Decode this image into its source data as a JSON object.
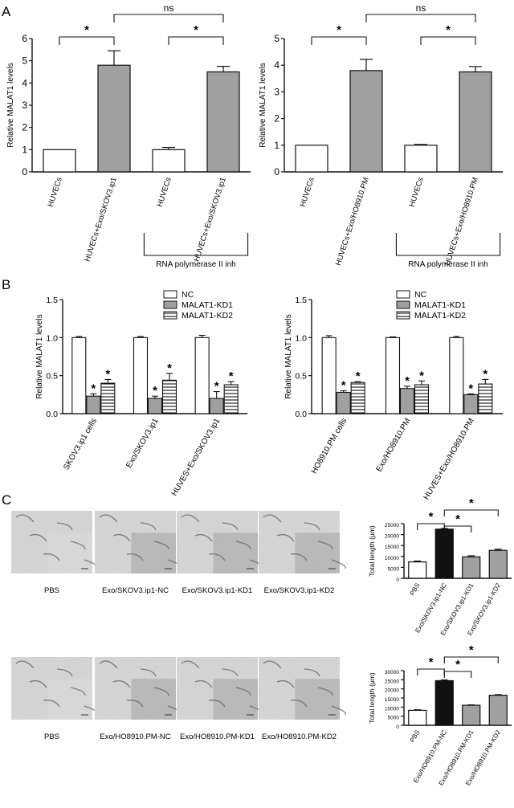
{
  "panel_letters": [
    "A",
    "B",
    "C"
  ],
  "colors": {
    "white_bar": "#ffffff",
    "gray_bar": "#a0a0a0",
    "black_bar": "#111111",
    "c_gray_bar": "#999999",
    "micro_bg_light": "#dcdcdc",
    "micro_bg_dark": "#9a9a9a"
  },
  "micrographs": {
    "row1_labels": [
      "PBS",
      "Exo/SKOV3.ip1-NC",
      "Exo/SKOV3.ip1-KD1",
      "Exo/SKOV3.ip1-KD2"
    ],
    "row2_labels": [
      "PBS",
      "Exo/HO8910.PM-NC",
      "Exo/HO8910.PM-KD1",
      "Exo/HO8910.PM-KD2"
    ]
  },
  "chart_data": [
    {
      "id": "A-left",
      "type": "bar",
      "panel": "A",
      "ylabel": "Relative  MALAT1 levels",
      "ylim": [
        0,
        6
      ],
      "yticks": [
        0,
        1,
        2,
        3,
        4,
        5,
        6
      ],
      "categories": [
        "HUVECs",
        "HUVECs+Exo/SKOV3.ip1",
        "HUVECs",
        "HUVECs+Exo/SKOV3.ip1"
      ],
      "values": [
        1.0,
        4.8,
        1.0,
        4.5
      ],
      "errors": [
        0,
        0.65,
        0.1,
        0.25
      ],
      "fills": [
        "white",
        "gray",
        "white",
        "gray"
      ],
      "brackets": [
        {
          "from": 0,
          "to": 1,
          "label": "*",
          "pos": "bottom"
        },
        {
          "from": 2,
          "to": 3,
          "label": "*",
          "pos": "bottom"
        },
        {
          "from": 1,
          "to": 3,
          "label": "ns",
          "pos": "top"
        }
      ],
      "group_bracket": {
        "from": 2,
        "to": 3,
        "label": "RNA polymerase II inh"
      }
    },
    {
      "id": "A-right",
      "type": "bar",
      "panel": "A",
      "ylabel": "Relative  MALAT1 levels",
      "ylim": [
        0,
        5
      ],
      "yticks": [
        0,
        1,
        2,
        3,
        4,
        5
      ],
      "categories": [
        "HUVECs",
        "HUVECs+Exo/HO8910.PM",
        "HUVECs",
        "HUVECs+Exo/HO8910.PM"
      ],
      "values": [
        1.0,
        3.8,
        1.0,
        3.75
      ],
      "errors": [
        0,
        0.42,
        0.03,
        0.2
      ],
      "fills": [
        "white",
        "gray",
        "white",
        "gray"
      ],
      "brackets": [
        {
          "from": 0,
          "to": 1,
          "label": "*",
          "pos": "bottom"
        },
        {
          "from": 2,
          "to": 3,
          "label": "*",
          "pos": "bottom"
        },
        {
          "from": 1,
          "to": 3,
          "label": "ns",
          "pos": "top"
        }
      ],
      "group_bracket": {
        "from": 2,
        "to": 3,
        "label": "RNA polymerase II inh"
      }
    },
    {
      "id": "B-left",
      "type": "bar",
      "panel": "B",
      "ylabel": "Relative  MALAT1 levels",
      "ylim": [
        0,
        1.5
      ],
      "yticks": [
        "0.0",
        "0.5",
        "1.0",
        "1.5"
      ],
      "categories": [
        "SKOV3.ip1 cells",
        "Exo/SKOV3.ip1",
        "HUVES+Exo/SKOV3.ip1"
      ],
      "legend": [
        "NC",
        "MALAT1-KD1",
        "MALAT1-KD2"
      ],
      "legend_position": "top-right",
      "series": [
        {
          "name": "NC",
          "values": [
            1.0,
            1.0,
            1.0
          ],
          "errors": [
            0.015,
            0.015,
            0.03
          ],
          "star": [
            false,
            false,
            false
          ]
        },
        {
          "name": "MALAT1-KD1",
          "values": [
            0.23,
            0.2,
            0.2
          ],
          "errors": [
            0.03,
            0.03,
            0.09
          ],
          "star": [
            true,
            true,
            true
          ]
        },
        {
          "name": "MALAT1-KD2",
          "values": [
            0.4,
            0.44,
            0.38
          ],
          "errors": [
            0.05,
            0.09,
            0.04
          ],
          "star": [
            true,
            true,
            true
          ]
        }
      ]
    },
    {
      "id": "B-right",
      "type": "bar",
      "panel": "B",
      "ylabel": "Relative  MALAT1 levels",
      "ylim": [
        0,
        1.5
      ],
      "yticks": [
        "0.0",
        "0.5",
        "1.0",
        "1.5"
      ],
      "categories": [
        "HO8910.PM cells",
        "Exo/HO8910.PM",
        "HUVES+Exo/HO8910.PM"
      ],
      "legend": [
        "NC",
        "MALAT1-KD1",
        "MALAT1-KD2"
      ],
      "legend_position": "top-right",
      "series": [
        {
          "name": "NC",
          "values": [
            1.0,
            1.0,
            1.0
          ],
          "errors": [
            0.025,
            0.01,
            0.015
          ],
          "star": [
            false,
            false,
            false
          ]
        },
        {
          "name": "MALAT1-KD1",
          "values": [
            0.28,
            0.33,
            0.25
          ],
          "errors": [
            0.02,
            0.03,
            0.01
          ],
          "star": [
            true,
            true,
            true
          ]
        },
        {
          "name": "MALAT1-KD2",
          "values": [
            0.41,
            0.38,
            0.39
          ],
          "errors": [
            0.01,
            0.05,
            0.06
          ],
          "star": [
            true,
            true,
            true
          ]
        }
      ]
    },
    {
      "id": "C-top",
      "type": "bar",
      "panel": "C",
      "ylabel": "Total length (μm)",
      "ylim": [
        0,
        25000
      ],
      "yticks": [
        0,
        5000,
        10000,
        15000,
        20000,
        25000
      ],
      "categories": [
        "PBS",
        "Exo/SKOV3.ip1-NC",
        "Exo/SKOV3.ip1-KD1",
        "Exo/SKOV3.ip1-KD2"
      ],
      "values": [
        7500,
        22500,
        9800,
        12800
      ],
      "errors": [
        400,
        300,
        500,
        500
      ],
      "fills": [
        "white",
        "black",
        "gray",
        "gray"
      ],
      "brackets": [
        {
          "from": 0,
          "to": 1,
          "label": "*",
          "level": 0
        },
        {
          "from": 1,
          "to": 2,
          "label": "*",
          "level": 1
        },
        {
          "from": 1,
          "to": 3,
          "label": "*",
          "level": 2
        }
      ]
    },
    {
      "id": "C-bottom",
      "type": "bar",
      "panel": "C",
      "ylabel": "Total length (μm)",
      "ylim": [
        0,
        30000
      ],
      "yticks": [
        0,
        5000,
        10000,
        15000,
        20000,
        25000,
        30000
      ],
      "categories": [
        "PBS",
        "Exo/HO8910.PM-NC",
        "Exo/HO8910.PM-KD1",
        "Exo/HO8910.PM-KD2"
      ],
      "values": [
        8200,
        24500,
        11000,
        16500
      ],
      "errors": [
        300,
        400,
        200,
        300
      ],
      "fills": [
        "white",
        "black",
        "gray",
        "gray"
      ],
      "brackets": [
        {
          "from": 0,
          "to": 1,
          "label": "*",
          "level": 0
        },
        {
          "from": 1,
          "to": 2,
          "label": "*",
          "level": 1
        },
        {
          "from": 1,
          "to": 3,
          "label": "*",
          "level": 2
        }
      ]
    }
  ]
}
